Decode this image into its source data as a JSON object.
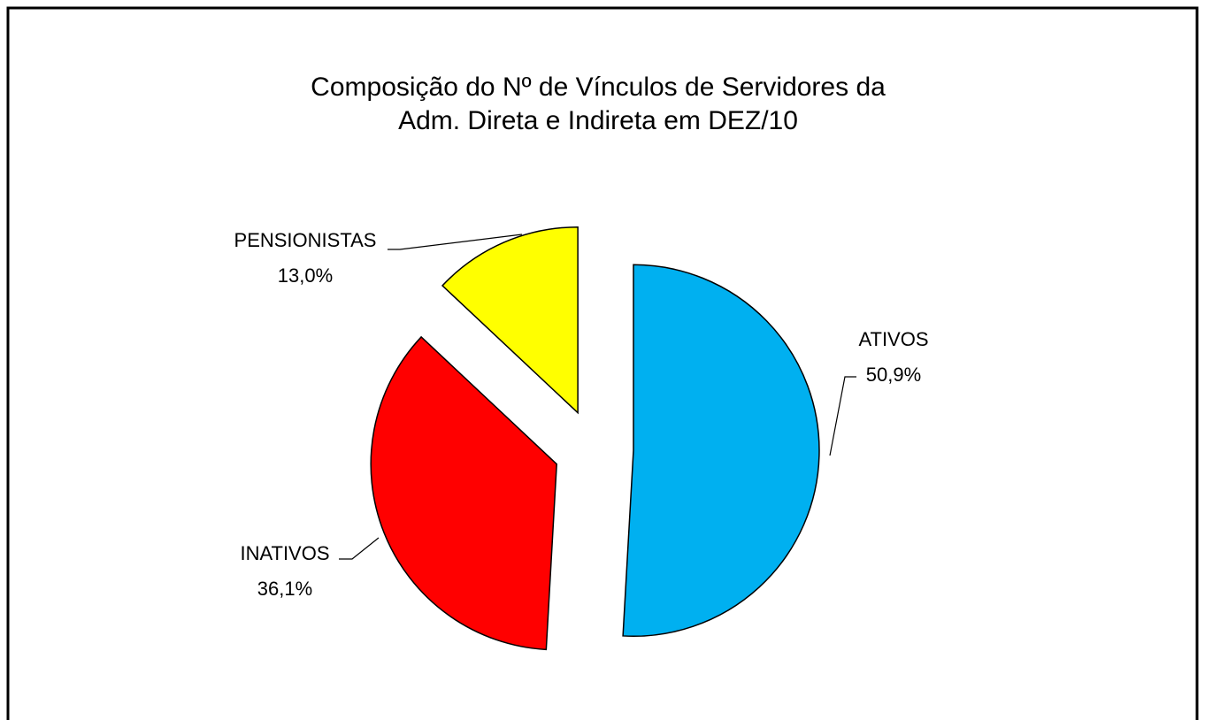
{
  "chart_data": {
    "type": "pie",
    "title": [
      "Composição do Nº de Vínculos de Servidores da",
      "Adm. Direta e Indireta em DEZ/10"
    ],
    "categories": [
      "ATIVOS",
      "INATIVOS",
      "PENSIONISTAS"
    ],
    "values": [
      50.9,
      36.1,
      13.0
    ],
    "value_labels": [
      "50,9%",
      "36,1%",
      "13,0%"
    ],
    "colors": [
      "#00b0f0",
      "#ff0000",
      "#ffff00"
    ]
  }
}
